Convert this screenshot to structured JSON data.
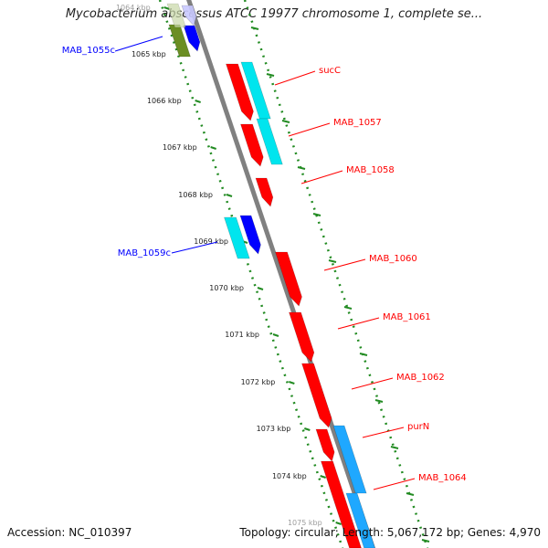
{
  "title": "Mycobacterium abscessus ATCC 19977 chromosome 1, complete se...",
  "footer": {
    "accession": "Accession: NC_010397",
    "summary": "Topology: circular; Length: 5,067,172 bp; Genes: 4,970"
  },
  "colors": {
    "forward": "#ff0000",
    "reverse": "#0000ff",
    "cds": "#00e5ee",
    "rrna": "#6b8e23",
    "backbone": "#808080",
    "ticks": "#228b22"
  },
  "scale": {
    "labels": [
      "1064 kbp",
      "1065 kbp",
      "1066 kbp",
      "1067 kbp",
      "1068 kbp",
      "1069 kbp",
      "1070 kbp",
      "1071 kbp",
      "1072 kbp",
      "1073 kbp",
      "1074 kbp",
      "1075 kbp"
    ]
  },
  "genes": [
    {
      "name": "MAB_1055c",
      "strand": "reverse"
    },
    {
      "name": "MAB_1059c",
      "strand": "reverse"
    },
    {
      "name": "sucC",
      "strand": "forward"
    },
    {
      "name": "MAB_1057",
      "strand": "forward"
    },
    {
      "name": "MAB_1058",
      "strand": "forward"
    },
    {
      "name": "MAB_1060",
      "strand": "forward"
    },
    {
      "name": "MAB_1061",
      "strand": "forward"
    },
    {
      "name": "MAB_1062",
      "strand": "forward"
    },
    {
      "name": "purN",
      "strand": "forward"
    },
    {
      "name": "MAB_1064",
      "strand": "forward"
    }
  ]
}
